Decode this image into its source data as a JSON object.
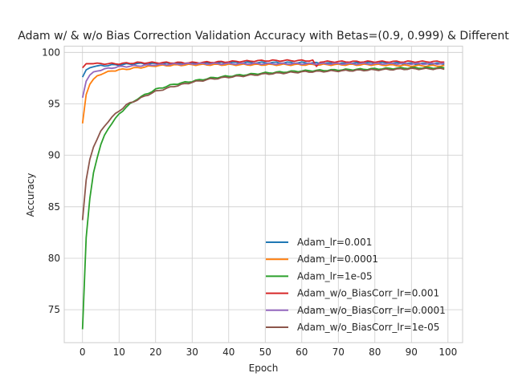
{
  "chart_data": {
    "type": "line",
    "title": "Adam w/ & w/o Bias Correction Validation Accuracy with Betas=(0.9, 0.999) & Different",
    "xlabel": "Epoch",
    "ylabel": "Accuracy",
    "xlim": [
      -5,
      104
    ],
    "ylim": [
      71.8,
      100.6
    ],
    "xticks": [
      0,
      10,
      20,
      30,
      40,
      50,
      60,
      70,
      80,
      90,
      100
    ],
    "yticks": [
      75,
      80,
      85,
      90,
      95,
      100
    ],
    "grid": true,
    "legend_position": "lower-right",
    "series": [
      {
        "name": "Adam_lr=0.001",
        "color": "#1f77b4",
        "anchors": [
          [
            0,
            97.6
          ],
          [
            1,
            98.3
          ],
          [
            2,
            98.5
          ],
          [
            3,
            98.6
          ],
          [
            5,
            98.7
          ],
          [
            10,
            98.8
          ],
          [
            15,
            98.9
          ],
          [
            20,
            98.9
          ],
          [
            25,
            98.9
          ],
          [
            30,
            98.9
          ],
          [
            40,
            99.0
          ],
          [
            50,
            99.0
          ],
          [
            60,
            99.0
          ],
          [
            70,
            98.9
          ],
          [
            80,
            99.0
          ],
          [
            90,
            98.9
          ],
          [
            99,
            98.9
          ]
        ]
      },
      {
        "name": "Adam_lr=0.0001",
        "color": "#ff7f0e",
        "anchors": [
          [
            0,
            93.1
          ],
          [
            1,
            95.9
          ],
          [
            2,
            96.9
          ],
          [
            3,
            97.4
          ],
          [
            4,
            97.7
          ],
          [
            5,
            97.9
          ],
          [
            6,
            98.0
          ],
          [
            8,
            98.2
          ],
          [
            10,
            98.3
          ],
          [
            15,
            98.5
          ],
          [
            20,
            98.7
          ],
          [
            30,
            98.8
          ],
          [
            40,
            98.8
          ],
          [
            50,
            98.8
          ],
          [
            60,
            98.8
          ],
          [
            70,
            98.8
          ],
          [
            80,
            98.8
          ],
          [
            90,
            98.7
          ],
          [
            99,
            98.7
          ]
        ]
      },
      {
        "name": "Adam_lr=1e-05",
        "color": "#2ca02c",
        "anchors": [
          [
            0,
            73.1
          ],
          [
            1,
            82.0
          ],
          [
            2,
            85.8
          ],
          [
            3,
            88.3
          ],
          [
            4,
            89.8
          ],
          [
            5,
            91.0
          ],
          [
            6,
            91.9
          ],
          [
            7,
            92.6
          ],
          [
            8,
            93.1
          ],
          [
            10,
            94.0
          ],
          [
            12,
            94.7
          ],
          [
            15,
            95.5
          ],
          [
            20,
            96.4
          ],
          [
            25,
            96.9
          ],
          [
            30,
            97.2
          ],
          [
            35,
            97.5
          ],
          [
            40,
            97.7
          ],
          [
            50,
            98.0
          ],
          [
            60,
            98.2
          ],
          [
            70,
            98.3
          ],
          [
            80,
            98.4
          ],
          [
            90,
            98.5
          ],
          [
            99,
            98.5
          ]
        ]
      },
      {
        "name": "Adam_w/o_BiasCorr_lr=0.001",
        "color": "#d62728",
        "anchors": [
          [
            0,
            98.5
          ],
          [
            1,
            98.9
          ],
          [
            3,
            98.9
          ],
          [
            5,
            98.9
          ],
          [
            8,
            98.9
          ],
          [
            10,
            98.9
          ],
          [
            15,
            99.0
          ],
          [
            20,
            99.0
          ],
          [
            30,
            99.0
          ],
          [
            40,
            99.1
          ],
          [
            50,
            99.2
          ],
          [
            60,
            99.2
          ],
          [
            63,
            99.2
          ],
          [
            64,
            98.6
          ],
          [
            65,
            99.1
          ],
          [
            70,
            99.1
          ],
          [
            80,
            99.1
          ],
          [
            90,
            99.1
          ],
          [
            99,
            99.1
          ]
        ]
      },
      {
        "name": "Adam_w/o_BiasCorr_lr=0.0001",
        "color": "#9467bd",
        "anchors": [
          [
            0,
            95.6
          ],
          [
            1,
            97.2
          ],
          [
            2,
            97.8
          ],
          [
            3,
            98.1
          ],
          [
            5,
            98.3
          ],
          [
            8,
            98.5
          ],
          [
            10,
            98.6
          ],
          [
            15,
            98.7
          ],
          [
            20,
            98.8
          ],
          [
            30,
            98.9
          ],
          [
            40,
            98.9
          ],
          [
            50,
            98.9
          ],
          [
            60,
            98.9
          ],
          [
            70,
            98.9
          ],
          [
            80,
            98.9
          ],
          [
            90,
            98.9
          ],
          [
            99,
            98.9
          ]
        ]
      },
      {
        "name": "Adam_w/o_BiasCorr_lr=1e-05",
        "color": "#8c564b",
        "anchors": [
          [
            0,
            83.7
          ],
          [
            1,
            87.6
          ],
          [
            2,
            89.6
          ],
          [
            3,
            90.8
          ],
          [
            4,
            91.6
          ],
          [
            5,
            92.3
          ],
          [
            6,
            92.8
          ],
          [
            7,
            93.3
          ],
          [
            8,
            93.7
          ],
          [
            10,
            94.3
          ],
          [
            12,
            94.9
          ],
          [
            15,
            95.4
          ],
          [
            18,
            95.9
          ],
          [
            20,
            96.2
          ],
          [
            25,
            96.7
          ],
          [
            30,
            97.1
          ],
          [
            35,
            97.4
          ],
          [
            40,
            97.6
          ],
          [
            50,
            97.9
          ],
          [
            60,
            98.1
          ],
          [
            70,
            98.2
          ],
          [
            80,
            98.3
          ],
          [
            90,
            98.4
          ],
          [
            99,
            98.4
          ]
        ]
      }
    ]
  }
}
